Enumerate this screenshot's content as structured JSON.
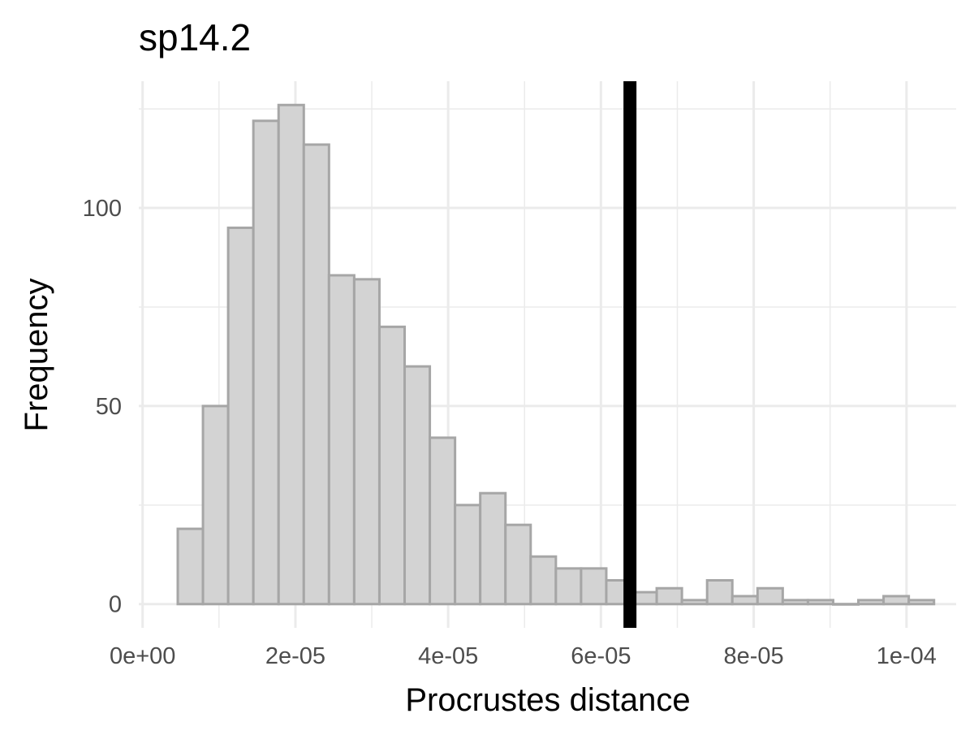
{
  "chart_data": {
    "type": "bar",
    "title": "sp14.2",
    "xlabel": "Procrustes distance",
    "ylabel": "Frequency",
    "xlim": [
      -5e-07,
      0.0001065
    ],
    "ylim": [
      -6,
      132
    ],
    "x_ticks": [
      0,
      2e-05,
      4e-05,
      6e-05,
      8e-05,
      0.0001
    ],
    "x_tick_labels": [
      "0e+00",
      "2e-05",
      "4e-05",
      "6e-05",
      "8e-05",
      "1e-04"
    ],
    "x_minor_ticks": [
      1e-05,
      3e-05,
      5e-05,
      7e-05,
      9e-05
    ],
    "y_ticks": [
      0,
      50,
      100
    ],
    "y_tick_labels": [
      "0",
      "50",
      "100"
    ],
    "y_minor_ticks": [
      25,
      75,
      125
    ],
    "grid": true,
    "bin_width": 3.3e-06,
    "bins_start": [
      4.6e-06,
      7.9e-06,
      1.12e-05,
      1.45e-05,
      1.78e-05,
      2.11e-05,
      2.44e-05,
      2.77e-05,
      3.1e-05,
      3.43e-05,
      3.76e-05,
      4.09e-05,
      4.42e-05,
      4.75e-05,
      5.08e-05,
      5.41e-05,
      5.74e-05,
      6.07e-05,
      6.4e-05,
      6.73e-05,
      7.06e-05,
      7.39e-05,
      7.72e-05,
      8.05e-05,
      8.38e-05,
      8.71e-05,
      9.04e-05,
      9.37e-05,
      9.7e-05,
      0.0001003
    ],
    "values": [
      19,
      50,
      95,
      122,
      126,
      116,
      83,
      82,
      70,
      60,
      42,
      25,
      28,
      20,
      12,
      9,
      9,
      6,
      3,
      4,
      1,
      6,
      2,
      4,
      1,
      1,
      0,
      1,
      2,
      1
    ],
    "bar_fill": "#d3d3d3",
    "bar_stroke": "#a6a6a6",
    "reference_line": {
      "x": 6.38e-05,
      "color": "#000000"
    },
    "grid_color": "#ebebeb",
    "tick_color": "#4d4d4d"
  }
}
